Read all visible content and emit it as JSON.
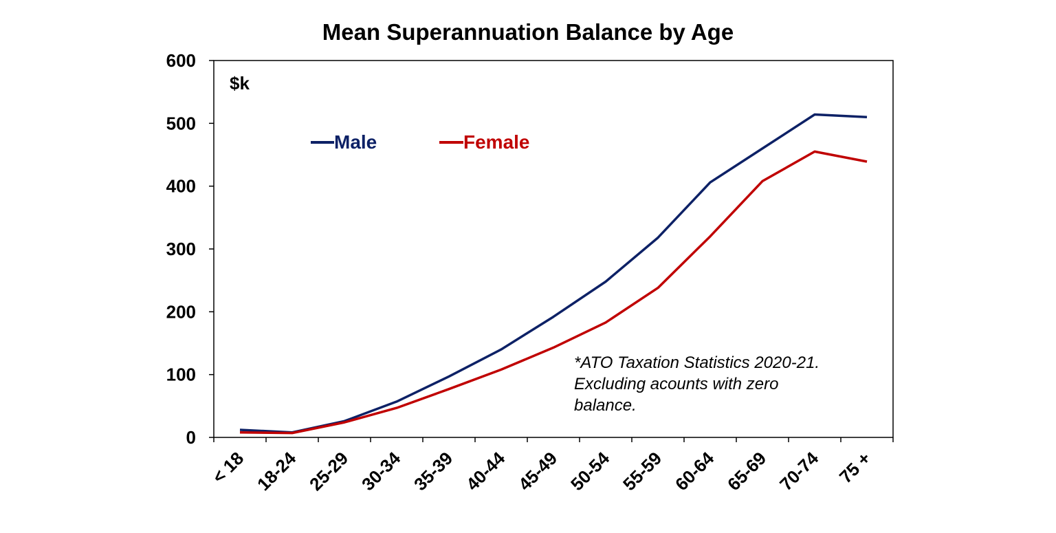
{
  "chart_data": {
    "type": "line",
    "title": "Mean Superannuation Balance by Age",
    "unit_label": "$k",
    "xlabel": "",
    "ylabel": "",
    "categories": [
      "< 18",
      "18-24",
      "25-29",
      "30-34",
      "35-39",
      "40-44",
      "45-49",
      "50-54",
      "55-59",
      "60-64",
      "65-69",
      "70-74",
      "75 +"
    ],
    "ylim": [
      0,
      600
    ],
    "yticks": [
      0,
      100,
      200,
      300,
      400,
      500,
      600
    ],
    "grid": false,
    "legend_position": "top-left",
    "series": [
      {
        "name": "Male",
        "color": "#0d2166",
        "values": [
          12,
          8,
          26,
          57,
          97,
          140,
          192,
          248,
          318,
          406,
          460,
          514,
          510
        ]
      },
      {
        "name": "Female",
        "color": "#c00000",
        "values": [
          8,
          7,
          24,
          47,
          77,
          108,
          143,
          183,
          238,
          320,
          408,
          455,
          439
        ]
      }
    ],
    "annotation": [
      "*ATO Taxation Statistics 2020-21.",
      "Excluding acounts with zero",
      "balance."
    ]
  }
}
